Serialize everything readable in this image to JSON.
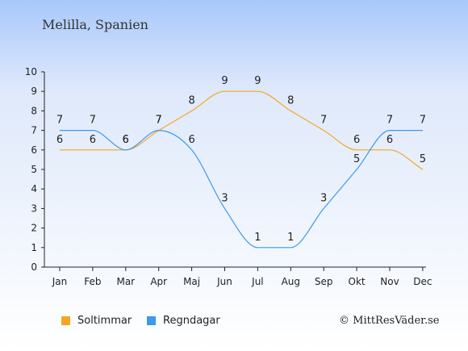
{
  "title": "Melilla, Spanien",
  "credit": "© MittResVäder.se",
  "chart_data": {
    "type": "line",
    "categories": [
      "Jan",
      "Feb",
      "Mar",
      "Apr",
      "Maj",
      "Jun",
      "Jul",
      "Aug",
      "Sep",
      "Okt",
      "Nov",
      "Dec"
    ],
    "ylim": [
      0,
      10
    ],
    "yticks": [
      0,
      1,
      2,
      3,
      4,
      5,
      6,
      7,
      8,
      9,
      10
    ],
    "grid": false,
    "legend_position": "bottom-left",
    "series": [
      {
        "name": "Soltimmar",
        "color": "#f5a623",
        "values": [
          6,
          6,
          6,
          7,
          8,
          9,
          9,
          8,
          7,
          6,
          6,
          5
        ]
      },
      {
        "name": "Regndagar",
        "color": "#3a9aec",
        "values": [
          7,
          7,
          6,
          7,
          6,
          3,
          1,
          1,
          3,
          5,
          7,
          7
        ]
      }
    ]
  }
}
